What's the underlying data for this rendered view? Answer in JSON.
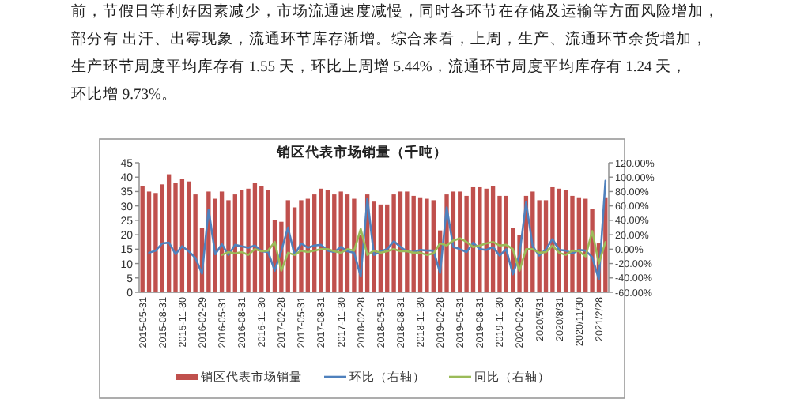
{
  "chart_data": {
    "type": "bar",
    "title": "销区代表市场销量（千吨）",
    "annotations": [
      "前，节假日等利好因素减少，市场流通速度减慢，同时各环节在存储及运输等方面风险增加，",
      "部分有 出汗、出霉现象，流通环节库存渐增。综合来看，上周，生产、流通环节余货增加，",
      "生产环节周度平均库存有 1.55 天，环比上周增 5.44%，流通环节周度平均库存有 1.24 天，",
      "环比增 9.73%。"
    ],
    "categories": [
      "2015-05-31",
      null,
      null,
      "2015-08-31",
      null,
      null,
      "2015-11-30",
      null,
      null,
      "2016-02-29",
      null,
      null,
      "2016-05-31",
      null,
      null,
      "2016-08-31",
      null,
      null,
      "2016-11-30",
      null,
      null,
      "2017-02-28",
      null,
      null,
      "2017-05-31",
      null,
      null,
      "2017-08-31",
      null,
      null,
      "2017-11-30",
      null,
      null,
      "2018-02-28",
      null,
      null,
      "2018-05-31",
      null,
      null,
      "2018-08-31",
      null,
      null,
      "2018-11-30",
      null,
      null,
      "2019-02-28",
      null,
      null,
      "2019-05-31",
      null,
      null,
      "2019-08-31",
      null,
      null,
      "2019-11-30",
      null,
      null,
      "2020-02-29",
      null,
      null,
      "2020/5/31",
      null,
      null,
      "2020/8/31",
      null,
      null,
      "2020/11/30",
      null,
      null,
      "2021/2/28",
      null
    ],
    "series": [
      {
        "name": "销区代表市场销量",
        "color": "#c0504d",
        "values": [
          37,
          35,
          34.5,
          37.5,
          41,
          38,
          39.5,
          38.5,
          34,
          22.5,
          35,
          32.5,
          35,
          32,
          34,
          35.5,
          36,
          38,
          37,
          35.5,
          25,
          24.5,
          32,
          29.5,
          32,
          32.5,
          34,
          36,
          35.5,
          34,
          35,
          34,
          32.5,
          20,
          34,
          31.5,
          30.5,
          30.5,
          34,
          35,
          35,
          33.5,
          33,
          32.5,
          32,
          21.5,
          34,
          35,
          35,
          33.5,
          36.5,
          36.5,
          36,
          37,
          33.5,
          33.5,
          22.5,
          20,
          33.5,
          35,
          32,
          32,
          36.5,
          36,
          35.5,
          33.5,
          33,
          32.5,
          29,
          17,
          33
        ]
      },
      {
        "name": "环比（右轴）",
        "type": "line",
        "axis": "y2",
        "color": "#4f81bd",
        "values": [
          null,
          -5,
          -2,
          8,
          9,
          -7,
          4,
          -3,
          -12,
          -34,
          55,
          -7,
          7,
          -8,
          6,
          4,
          2,
          5,
          -3,
          -4,
          -30,
          -2,
          30,
          -8,
          8,
          2,
          5,
          6,
          -2,
          -4,
          3,
          -3,
          -5,
          -38,
          70,
          -8,
          -3,
          0,
          11,
          3,
          -3,
          -4,
          -1,
          -2,
          -2,
          -33,
          58,
          3,
          0,
          -4,
          9,
          0,
          -1,
          3,
          -9,
          0,
          -35,
          -8,
          65,
          4,
          -9,
          0,
          14,
          -1,
          -2,
          -6,
          -1,
          -2,
          -11,
          -42,
          95
        ]
      },
      {
        "name": "同比（右轴）",
        "type": "line",
        "axis": "y2",
        "color": "#9bbb59",
        "values": [
          null,
          null,
          null,
          null,
          null,
          null,
          null,
          null,
          null,
          null,
          null,
          null,
          -8,
          -4,
          -6,
          -4,
          -8,
          0,
          -3,
          -2,
          10,
          -30,
          -5,
          -8,
          -2,
          -4,
          -2,
          0,
          0,
          -3,
          -5,
          0,
          -2,
          28,
          -8,
          -2,
          -5,
          -3,
          0,
          -3,
          -3,
          -5,
          -5,
          -8,
          -6,
          8,
          5,
          12,
          15,
          10,
          3,
          5,
          8,
          10,
          5,
          6,
          0,
          -30,
          0,
          0,
          -5,
          -4,
          5,
          -5,
          -8,
          -2,
          -3,
          -10,
          25,
          -20,
          10
        ]
      }
    ],
    "ylim": [
      0,
      45
    ],
    "yticks": [
      0,
      5,
      10,
      15,
      20,
      25,
      30,
      35,
      40,
      45
    ],
    "y2lim": [
      -60,
      120
    ],
    "y2ticks": [
      {
        "value": -60,
        "label": "-60.00%"
      },
      {
        "value": -40,
        "label": "-40.00%"
      },
      {
        "value": -20,
        "label": "-20.00%"
      },
      {
        "value": 0,
        "label": "0.00%"
      },
      {
        "value": 20,
        "label": "20.00%"
      },
      {
        "value": 40,
        "label": "40.00%"
      },
      {
        "value": 60,
        "label": "60.00%"
      },
      {
        "value": 80,
        "label": "80.00%"
      },
      {
        "value": 100,
        "label": "100.00%"
      },
      {
        "value": 120,
        "label": "120.00%"
      }
    ],
    "legend": "bottom"
  }
}
